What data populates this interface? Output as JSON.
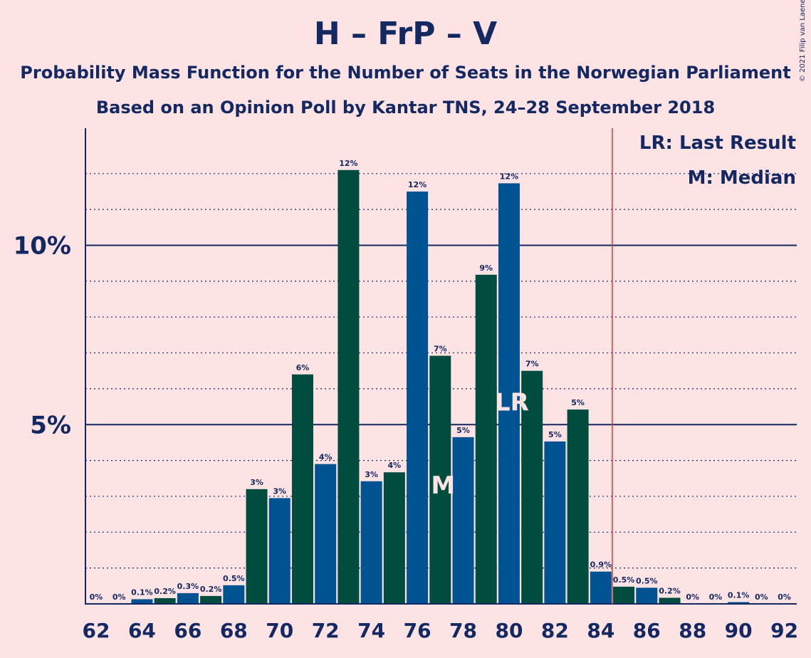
{
  "title": "H – FrP – V",
  "subtitle1": "Probability Mass Function for the Number of Seats in the Norwegian Parliament",
  "subtitle2": "Based on an Opinion Poll by Kantar TNS, 24–28 September 2018",
  "copyright": "© 2021 Filip van Laenen",
  "legend": {
    "lr": "LR: Last Result",
    "m": "M: Median"
  },
  "colors": {
    "background": "#fde3e4",
    "bar_blue": "#005393",
    "bar_green": "#004d40",
    "text": "#142862",
    "majority_line": "#d43b3b"
  },
  "chart_data": {
    "type": "bar",
    "x_ticks": [
      "62",
      "64",
      "66",
      "68",
      "70",
      "72",
      "74",
      "76",
      "78",
      "80",
      "82",
      "84",
      "86",
      "88",
      "90",
      "92"
    ],
    "y_ticks": [
      {
        "value": 5,
        "label": "5%"
      },
      {
        "value": 10,
        "label": "10%"
      }
    ],
    "ylim": [
      0,
      13
    ],
    "majority_threshold": 84.5,
    "last_result": 80,
    "median": 77,
    "bars": [
      {
        "seats": 62,
        "value": 0,
        "label": "0%"
      },
      {
        "seats": 63,
        "value": 0,
        "label": "0%"
      },
      {
        "seats": 64,
        "value": 0.13,
        "label": "0.1%"
      },
      {
        "seats": 65,
        "value": 0.16,
        "label": "0.2%"
      },
      {
        "seats": 66,
        "value": 0.3,
        "label": "0.3%"
      },
      {
        "seats": 67,
        "value": 0.22,
        "label": "0.2%"
      },
      {
        "seats": 68,
        "value": 0.52,
        "label": "0.5%"
      },
      {
        "seats": 69,
        "value": 3.2,
        "label": "3%"
      },
      {
        "seats": 70,
        "value": 2.95,
        "label": "3%"
      },
      {
        "seats": 71,
        "value": 6.4,
        "label": "6%"
      },
      {
        "seats": 72,
        "value": 3.9,
        "label": "4%"
      },
      {
        "seats": 73,
        "value": 12.1,
        "label": "12%"
      },
      {
        "seats": 74,
        "value": 3.42,
        "label": "3%"
      },
      {
        "seats": 75,
        "value": 3.67,
        "label": "4%"
      },
      {
        "seats": 76,
        "value": 11.5,
        "label": "12%"
      },
      {
        "seats": 77,
        "value": 6.92,
        "label": "7%"
      },
      {
        "seats": 78,
        "value": 4.65,
        "label": "5%"
      },
      {
        "seats": 79,
        "value": 9.18,
        "label": "9%"
      },
      {
        "seats": 80,
        "value": 11.73,
        "label": "12%"
      },
      {
        "seats": 81,
        "value": 6.5,
        "label": "7%"
      },
      {
        "seats": 82,
        "value": 4.53,
        "label": "5%"
      },
      {
        "seats": 83,
        "value": 5.42,
        "label": "5%"
      },
      {
        "seats": 84,
        "value": 0.9,
        "label": "0.9%"
      },
      {
        "seats": 85,
        "value": 0.48,
        "label": "0.5%"
      },
      {
        "seats": 86,
        "value": 0.45,
        "label": "0.5%"
      },
      {
        "seats": 87,
        "value": 0.17,
        "label": "0.2%"
      },
      {
        "seats": 88,
        "value": 0,
        "label": "0%"
      },
      {
        "seats": 89,
        "value": 0,
        "label": "0%"
      },
      {
        "seats": 90,
        "value": 0.05,
        "label": "0.1%"
      },
      {
        "seats": 91,
        "value": 0,
        "label": "0%"
      },
      {
        "seats": 92,
        "value": 0,
        "label": "0%"
      }
    ],
    "markers": [
      {
        "seats": 77,
        "text": "M"
      },
      {
        "seats": 80,
        "text": "LR"
      }
    ]
  }
}
